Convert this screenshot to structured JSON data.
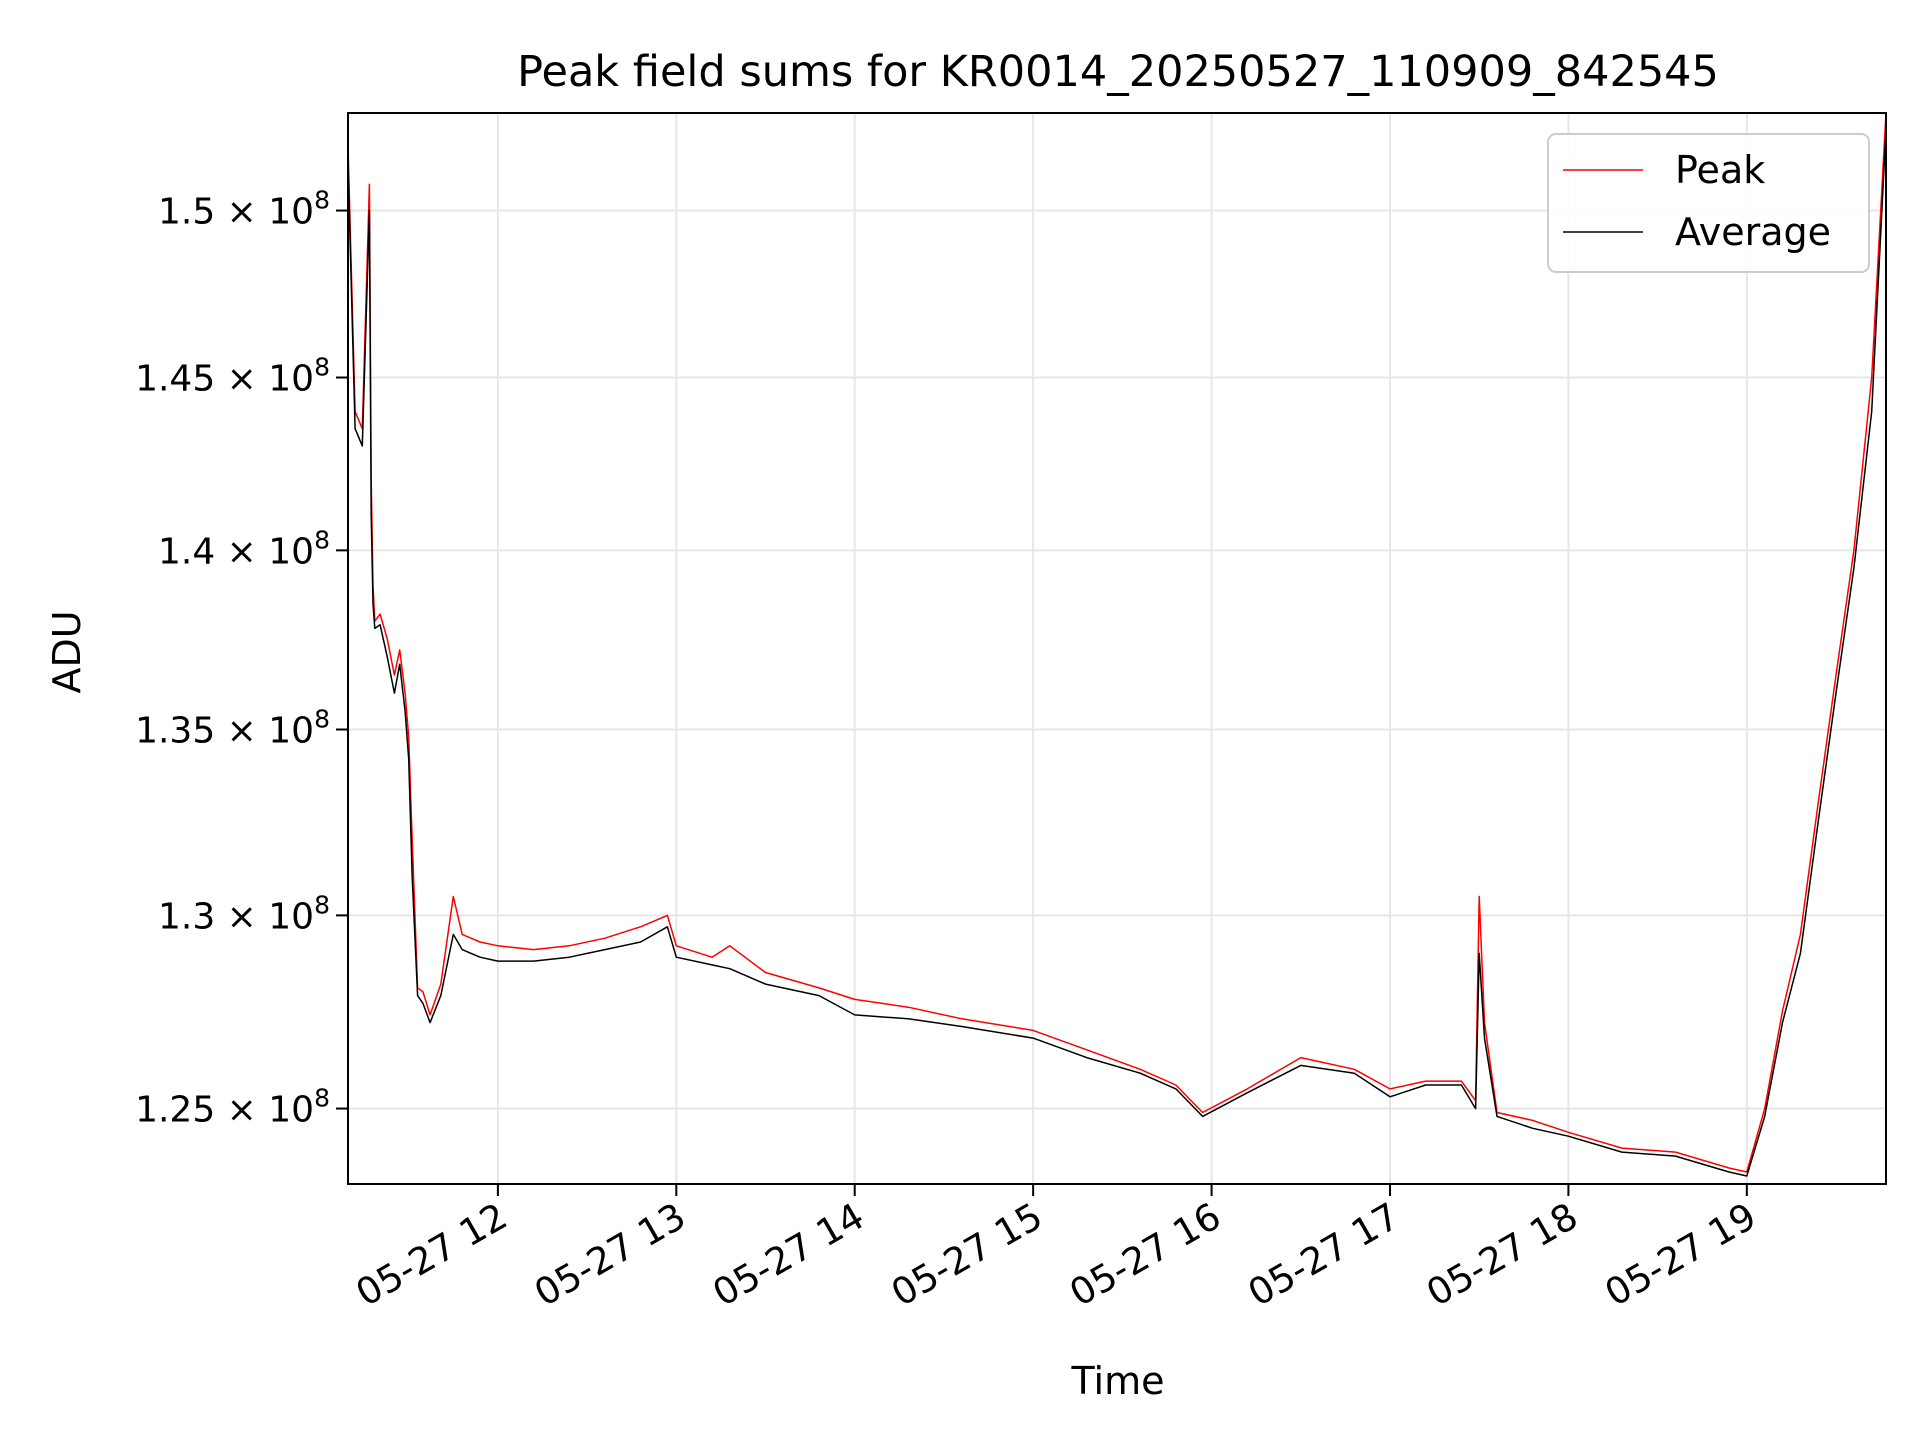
{
  "chart_data": {
    "type": "line",
    "title": "Peak field sums for KR0014_20250527_110909_842545",
    "xlabel": "Time",
    "ylabel": "ADU",
    "x_range": [
      "2025-05-27 11:09",
      "2025-05-27 19:48"
    ],
    "xlim": [
      11.16,
      19.78
    ],
    "ylim": [
      123100000,
      153000000
    ],
    "y_scale": "log",
    "grid": true,
    "legend_position": "top-right",
    "x_ticks": [
      {
        "value": 12,
        "label": "05-27 12"
      },
      {
        "value": 13,
        "label": "05-27 13"
      },
      {
        "value": 14,
        "label": "05-27 14"
      },
      {
        "value": 15,
        "label": "05-27 15"
      },
      {
        "value": 16,
        "label": "05-27 16"
      },
      {
        "value": 17,
        "label": "05-27 17"
      },
      {
        "value": 18,
        "label": "05-27 18"
      },
      {
        "value": 19,
        "label": "05-27 19"
      }
    ],
    "y_ticks": [
      {
        "value": 125000000,
        "mantissa": "1.25"
      },
      {
        "value": 130000000,
        "mantissa": "1.3"
      },
      {
        "value": 135000000,
        "mantissa": "1.35"
      },
      {
        "value": 140000000,
        "mantissa": "1.4"
      },
      {
        "value": 145000000,
        "mantissa": "1.45"
      },
      {
        "value": 150000000,
        "mantissa": "1.5"
      }
    ],
    "y_tick_suffix": "× 10",
    "y_tick_exponent": "8",
    "series": [
      {
        "name": "Peak",
        "color": "#ff0000",
        "x": [
          11.16,
          11.2,
          11.24,
          11.28,
          11.29,
          11.3,
          11.31,
          11.34,
          11.38,
          11.42,
          11.45,
          11.48,
          11.5,
          11.52,
          11.55,
          11.58,
          11.62,
          11.68,
          11.75,
          11.8,
          11.85,
          11.9,
          12.0,
          12.2,
          12.4,
          12.6,
          12.8,
          12.95,
          13.0,
          13.2,
          13.3,
          13.5,
          13.8,
          14.0,
          14.3,
          14.6,
          15.0,
          15.3,
          15.6,
          15.8,
          15.95,
          16.2,
          16.5,
          16.8,
          17.0,
          17.2,
          17.4,
          17.48,
          17.5,
          17.53,
          17.6,
          17.8,
          18.0,
          18.3,
          18.6,
          18.9,
          19.0,
          19.1,
          19.2,
          19.3,
          19.4,
          19.5,
          19.6,
          19.7,
          19.78
        ],
        "values": [
          152000000,
          144000000,
          143500000,
          150800000,
          142000000,
          139000000,
          138000000,
          138200000,
          137500000,
          136500000,
          137200000,
          136000000,
          134800000,
          132000000,
          128100000,
          128000000,
          127400000,
          128200000,
          130500000,
          129500000,
          129400000,
          129300000,
          129200000,
          129100000,
          129200000,
          129400000,
          129700000,
          130000000,
          129200000,
          128900000,
          129200000,
          128500000,
          128100000,
          127800000,
          127600000,
          127300000,
          127000000,
          126500000,
          126000000,
          125600000,
          124900000,
          125500000,
          126300000,
          126000000,
          125500000,
          125700000,
          125700000,
          125200000,
          130500000,
          127200000,
          124900000,
          124700000,
          124400000,
          124000000,
          123900000,
          123500000,
          123400000,
          125000000,
          127500000,
          129500000,
          133000000,
          136500000,
          140000000,
          145000000,
          153000000
        ]
      },
      {
        "name": "Average",
        "color": "#000000",
        "x": [
          11.16,
          11.2,
          11.24,
          11.28,
          11.29,
          11.3,
          11.31,
          11.34,
          11.38,
          11.42,
          11.45,
          11.48,
          11.5,
          11.52,
          11.55,
          11.58,
          11.62,
          11.68,
          11.75,
          11.8,
          11.85,
          11.9,
          12.0,
          12.2,
          12.4,
          12.6,
          12.8,
          12.95,
          13.0,
          13.2,
          13.3,
          13.5,
          13.8,
          14.0,
          14.3,
          14.6,
          15.0,
          15.3,
          15.6,
          15.8,
          15.95,
          16.2,
          16.5,
          16.8,
          17.0,
          17.2,
          17.4,
          17.48,
          17.5,
          17.53,
          17.6,
          17.8,
          18.0,
          18.3,
          18.6,
          18.9,
          19.0,
          19.1,
          19.2,
          19.3,
          19.4,
          19.5,
          19.6,
          19.7,
          19.78
        ],
        "values": [
          151500000,
          143500000,
          143000000,
          150000000,
          141000000,
          138500000,
          137800000,
          137900000,
          137000000,
          136000000,
          136800000,
          135500000,
          134200000,
          131000000,
          127900000,
          127700000,
          127200000,
          127900000,
          129500000,
          129100000,
          129000000,
          128900000,
          128800000,
          128800000,
          128900000,
          129100000,
          129300000,
          129700000,
          128900000,
          128700000,
          128600000,
          128200000,
          127900000,
          127400000,
          127300000,
          127100000,
          126800000,
          126300000,
          125900000,
          125500000,
          124800000,
          125400000,
          126100000,
          125900000,
          125300000,
          125600000,
          125600000,
          125000000,
          129000000,
          126800000,
          124800000,
          124500000,
          124300000,
          123900000,
          123800000,
          123400000,
          123300000,
          124800000,
          127200000,
          129000000,
          132500000,
          136000000,
          139500000,
          144000000,
          152500000
        ]
      }
    ]
  }
}
